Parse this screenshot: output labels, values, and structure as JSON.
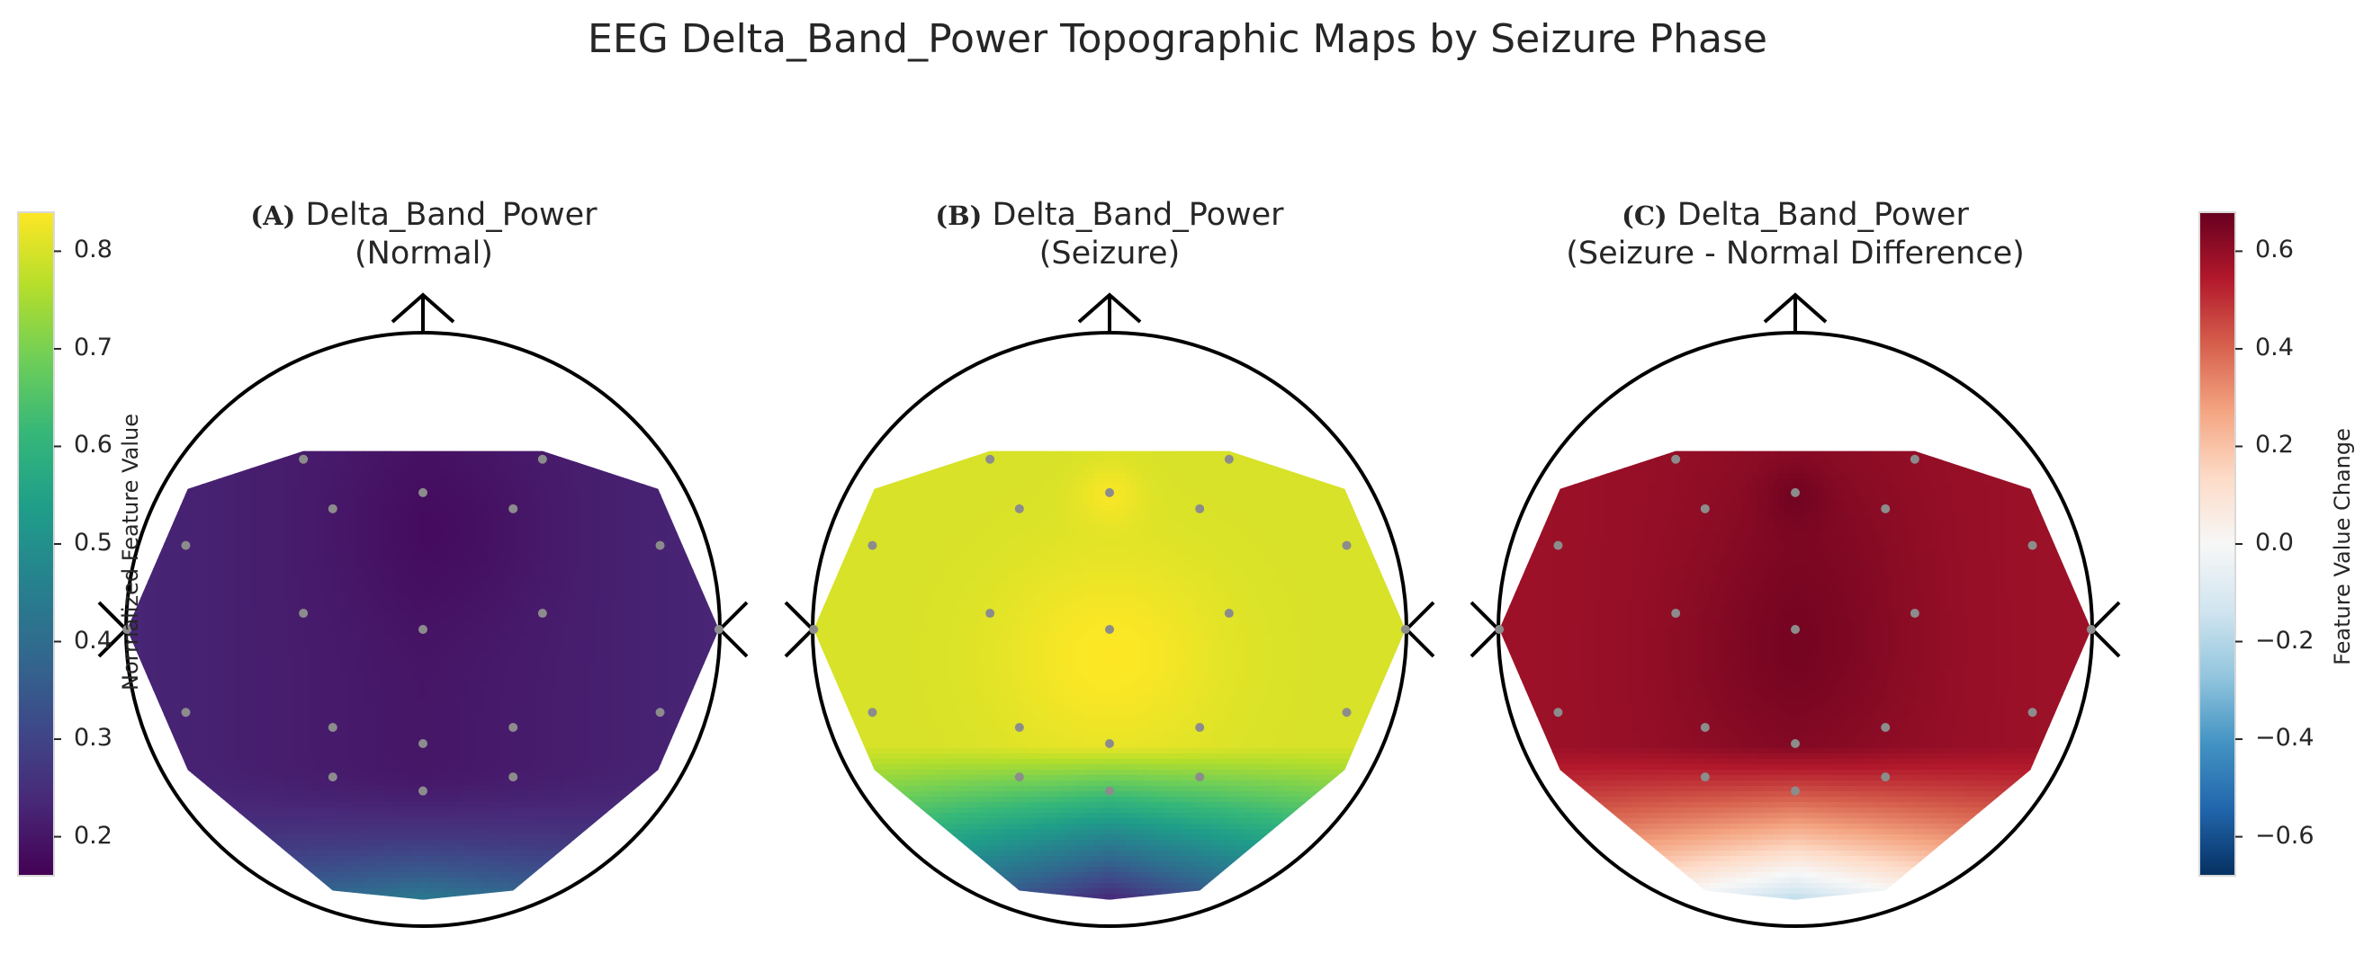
{
  "title": "EEG Delta_Band_Power Topographic Maps by Seizure Phase",
  "chart_data": [
    {
      "type": "heatmap",
      "panel_letter": "(A)",
      "title_line1": "Delta_Band_Power",
      "title_line2": "(Normal)",
      "colormap": "viridis",
      "colorbar_label": "Normalized Feature Value",
      "colorbar_range": [
        0.16,
        0.84
      ],
      "colorbar_ticks": [
        0.2,
        0.3,
        0.4,
        0.5,
        0.6,
        0.7,
        0.8
      ],
      "approx_value_range": [
        0.18,
        0.42
      ],
      "description_of_field": "low values (~0.2) across most of scalp, rising to ~0.4 at occipital region"
    },
    {
      "type": "heatmap",
      "panel_letter": "(B)",
      "title_line1": "Delta_Band_Power",
      "title_line2": "(Seizure)",
      "colormap": "viridis",
      "approx_value_range": [
        0.3,
        0.84
      ],
      "description_of_field": "high values (~0.8) across most of scalp, dropping to ~0.3 at occipital region"
    },
    {
      "type": "heatmap",
      "panel_letter": "(C)",
      "title_line1": "Delta_Band_Power",
      "title_line2": "(Seizure - Normal Difference)",
      "colormap": "RdBu_r",
      "colorbar_label": "Feature Value Change",
      "colorbar_range": [
        -0.68,
        0.68
      ],
      "colorbar_ticks": [
        "−0.6",
        "−0.4",
        "−0.2",
        "0.0",
        "0.2",
        "0.4",
        "0.6"
      ],
      "approx_value_range": [
        -0.15,
        0.62
      ],
      "description_of_field": "strong positive change (~0.6) across most of scalp, near zero / slightly negative at occipital"
    }
  ],
  "colors": {
    "viridis": [
      "#440154",
      "#482878",
      "#3e4989",
      "#31688e",
      "#26828e",
      "#1f9e89",
      "#35b779",
      "#6ece58",
      "#b5de2b",
      "#fde725"
    ],
    "rdbu": [
      "#053061",
      "#2166ac",
      "#4393c3",
      "#92c5de",
      "#d1e5f0",
      "#f7f7f7",
      "#fddbc7",
      "#f4a582",
      "#d6604d",
      "#b2182b",
      "#67001f"
    ]
  }
}
